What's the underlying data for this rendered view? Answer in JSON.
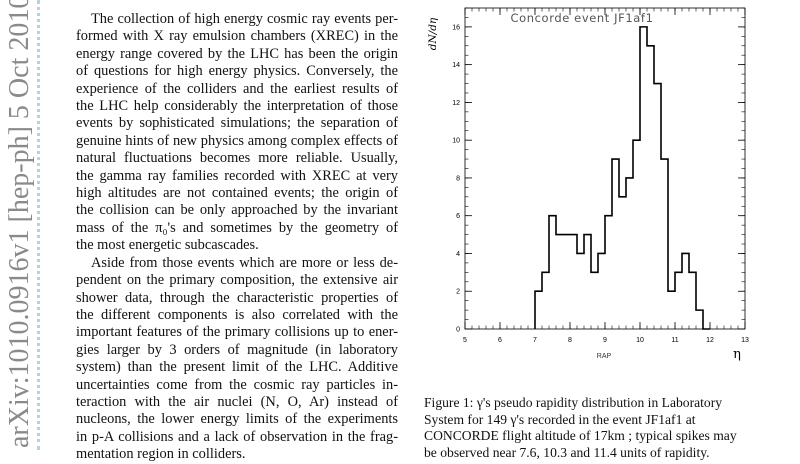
{
  "stamp": {
    "text": "arXiv:1010.0916v1  [hep-ph]  5 Oct 2010"
  },
  "body_text": {
    "paragraph_1": [
      "The collection of high energy cosmic ray events per-",
      "formed with X ray emulsion chambers (XREC) in the",
      "energy range covered by the LHC has been the origin",
      "of questions for high energy physics.  Conversely, the",
      "experience of the colliders and the earliest results of",
      "the LHC help considerably the interpretation of those",
      "events by sophisticated simulations; the separation of",
      "genuine hints of new physics among complex effects of",
      "natural fluctuations becomes more reliable.  Usually,",
      "the gamma ray families recorded with XREC at very",
      "high altitudes are not contained events; the origin of",
      "the collision can be only approached by the invariant",
      "mass of the π₀'s and sometimes by the geometry of",
      "the most energetic subcascades."
    ],
    "paragraph_2": [
      "Aside from those events which are more or less de-",
      "pendent on the primary composition, the extensive air",
      "shower data, through the characteristic properties of",
      "the different components is also correlated with the",
      "important features of the primary collisions up to ener-",
      "gies larger by 3 orders of magnitude (in laboratory",
      "system) than the present limit of the LHC. Additive",
      "uncertainties come from the cosmic ray particles in-",
      "teraction with the air nuclei (N, O, Ar) instead of",
      "nucleons, the lower energy limits of the experiments",
      "in p-A collisions and a lack of observation in the frag-",
      "mentation region in colliders."
    ]
  },
  "caption": {
    "lines": [
      "Figure 1: γ's pseudo rapidity distribution in Laboratory",
      "System for 149 γ's recorded in the event JF1af1 at",
      "CONCORDE flight altitude of 17km ; typical spikes may",
      "be observed near 7.6, 10.3 and 11.4 units of rapidity."
    ]
  },
  "chart_data": {
    "type": "histogram",
    "title": "Concorde event JF1af1",
    "xlabel": "RAP",
    "xlabel_symbol": "η",
    "ylabel": "dN/dη",
    "xlim": [
      5,
      13
    ],
    "ylim": [
      0,
      17
    ],
    "x_ticks": [
      5,
      6,
      7,
      8,
      9,
      10,
      11,
      12,
      13
    ],
    "y_ticks": [
      0,
      2,
      4,
      6,
      8,
      10,
      12,
      14,
      16
    ],
    "bin_width": 0.2,
    "bins": [
      {
        "x0": 7.0,
        "value": 2
      },
      {
        "x0": 7.2,
        "value": 3
      },
      {
        "x0": 7.4,
        "value": 6
      },
      {
        "x0": 7.6,
        "value": 5
      },
      {
        "x0": 7.8,
        "value": 5
      },
      {
        "x0": 8.0,
        "value": 5
      },
      {
        "x0": 8.2,
        "value": 4
      },
      {
        "x0": 8.4,
        "value": 5
      },
      {
        "x0": 8.6,
        "value": 3
      },
      {
        "x0": 8.8,
        "value": 4
      },
      {
        "x0": 9.0,
        "value": 6
      },
      {
        "x0": 9.2,
        "value": 9
      },
      {
        "x0": 9.4,
        "value": 7
      },
      {
        "x0": 9.6,
        "value": 8
      },
      {
        "x0": 9.8,
        "value": 10
      },
      {
        "x0": 10.0,
        "value": 16
      },
      {
        "x0": 10.2,
        "value": 15
      },
      {
        "x0": 10.4,
        "value": 13
      },
      {
        "x0": 10.6,
        "value": 9
      },
      {
        "x0": 10.8,
        "value": 2
      },
      {
        "x0": 11.0,
        "value": 3
      },
      {
        "x0": 11.2,
        "value": 4
      },
      {
        "x0": 11.4,
        "value": 3
      },
      {
        "x0": 11.6,
        "value": 1
      },
      {
        "x0": 11.8,
        "value": 0
      }
    ],
    "grid": false,
    "colors": {
      "line": "#000000",
      "title_text": "#555555"
    }
  }
}
